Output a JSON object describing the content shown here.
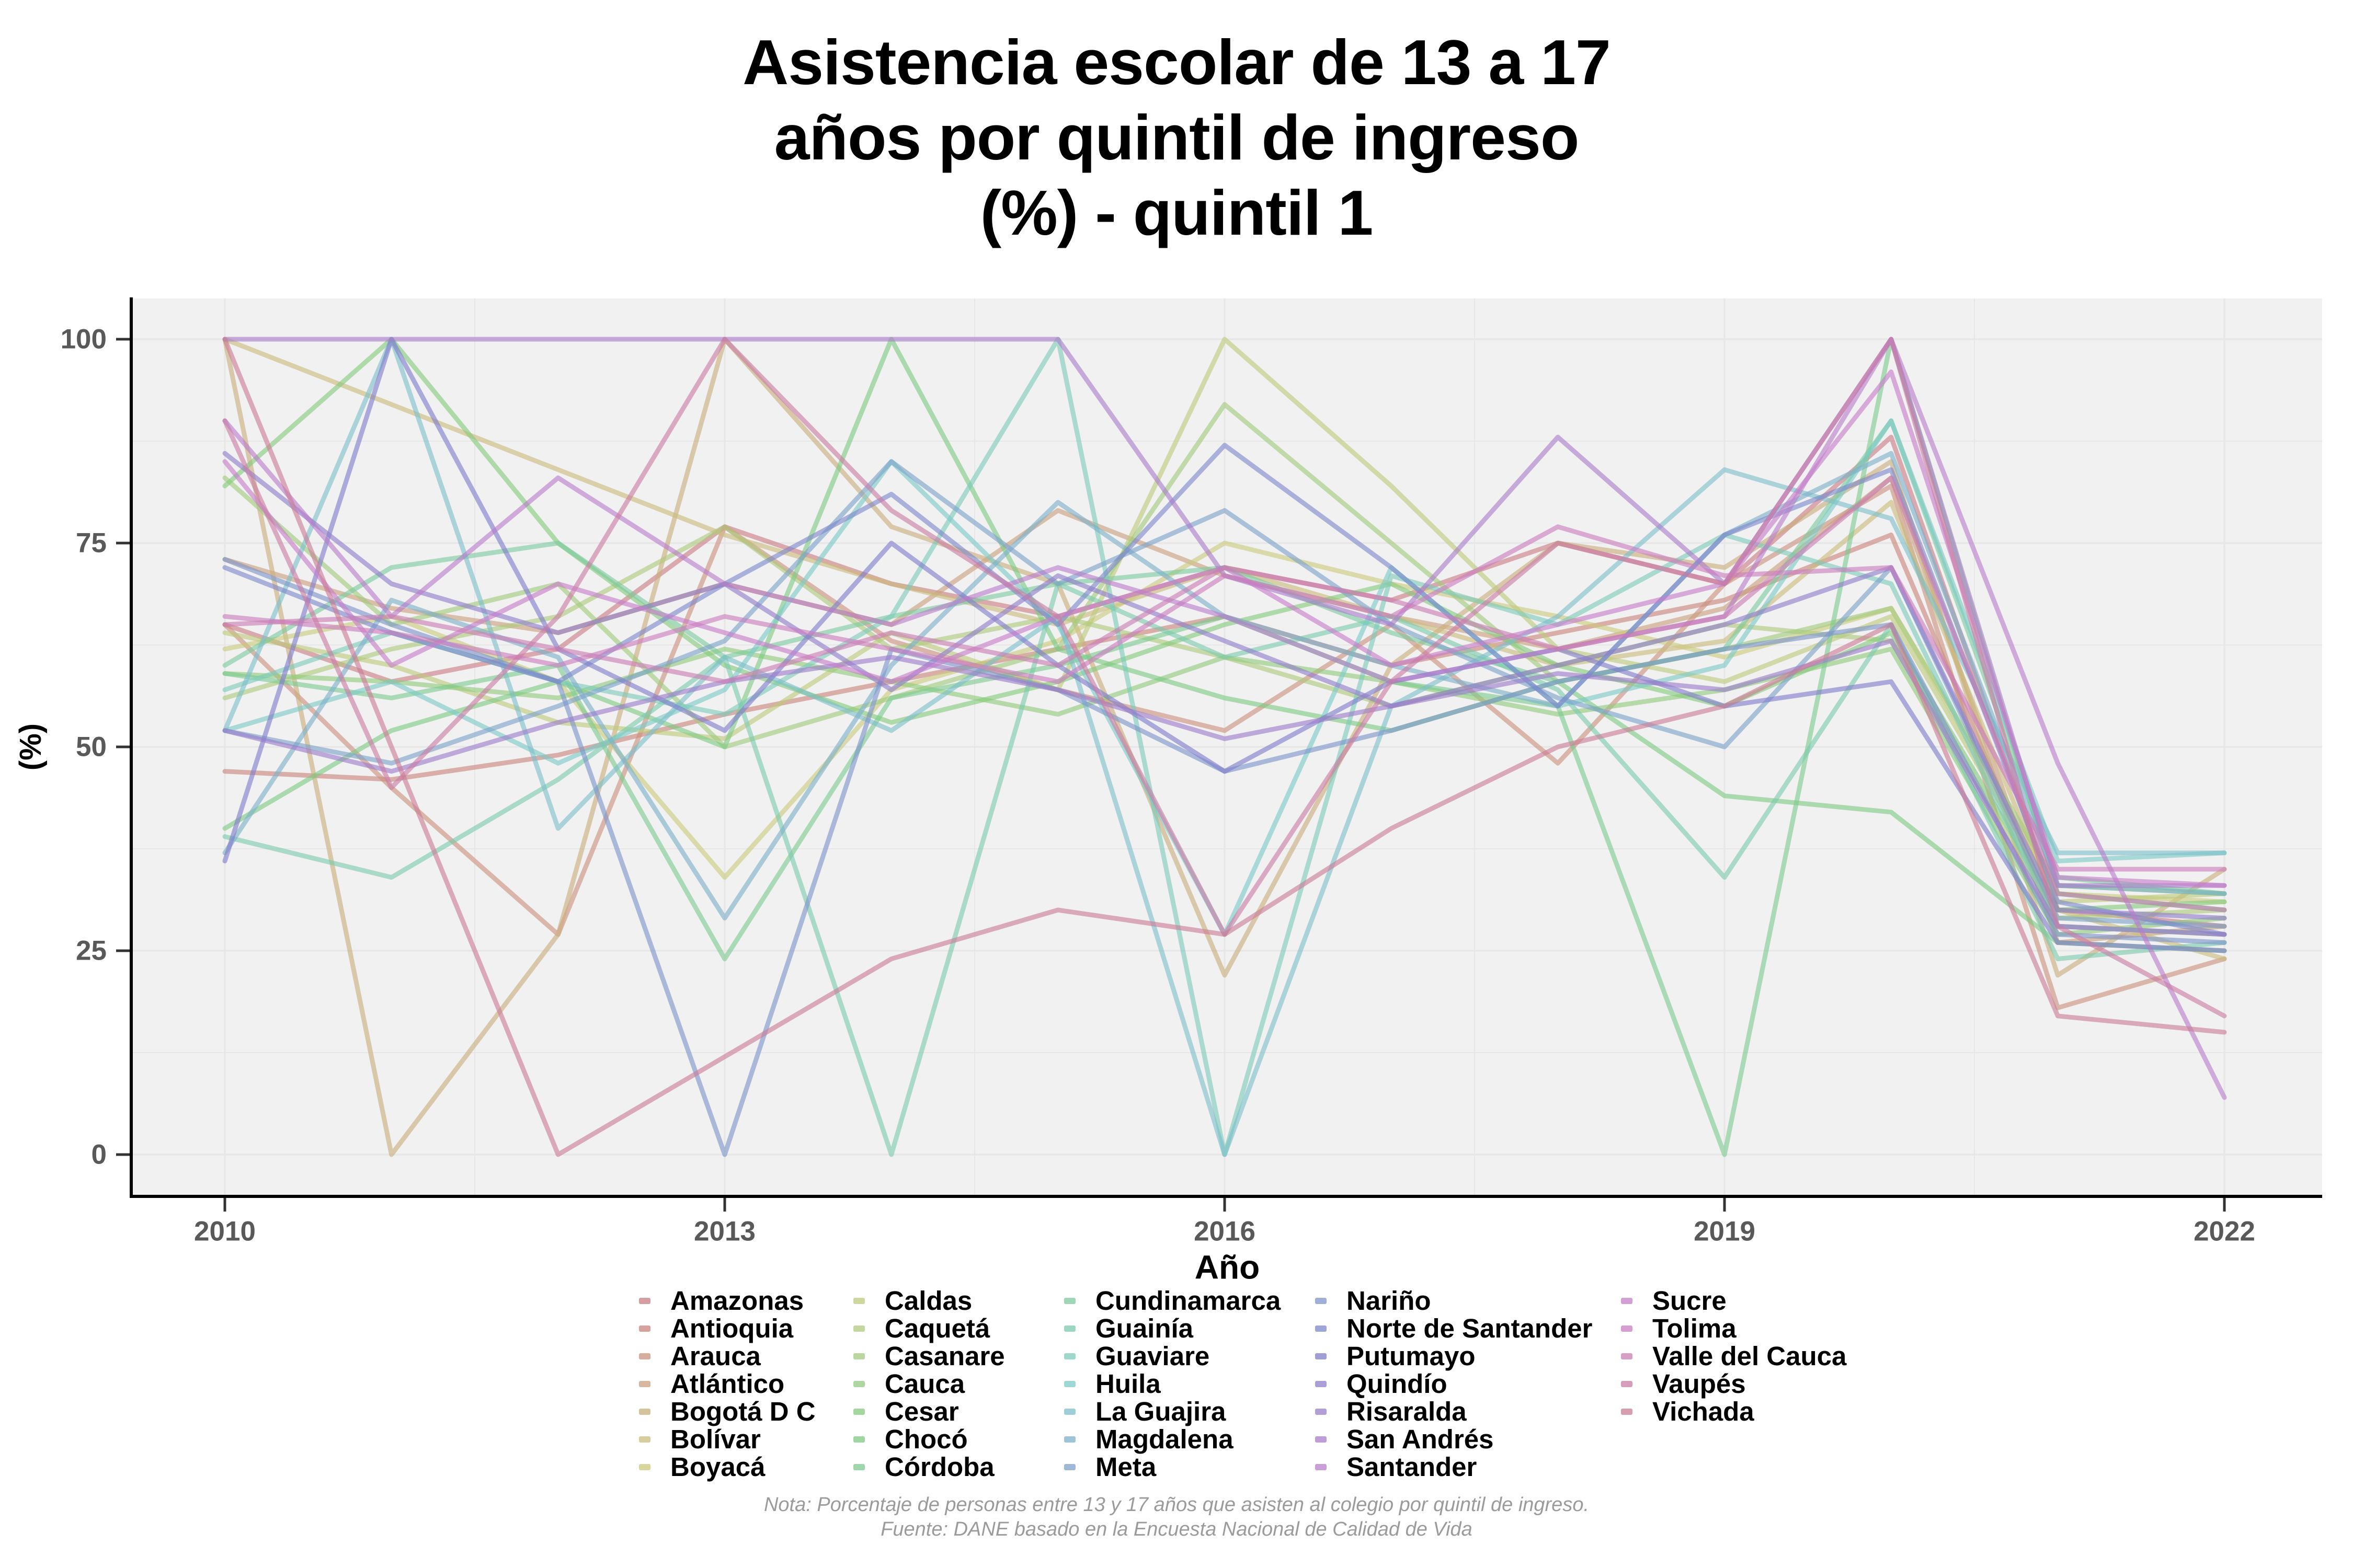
{
  "title": "Asistencia escolar de 13 a 17\naños por quintil de ingreso\n(%) - quintil 1",
  "caption": {
    "note": "Nota: Porcentaje de personas entre 13 y 17 años que asisten al colegio por quintil de ingreso.",
    "source": "Fuente: DANE basado en la Encuesta Nacional de Calidad de Vida"
  },
  "legend": {
    "columns": [
      7,
      7,
      7,
      7,
      5
    ]
  },
  "chart_data": {
    "type": "line",
    "title": "Asistencia escolar de 13 a 17 años por quintil de ingreso (%) - quintil 1",
    "xlabel": "Año",
    "ylabel": "(%)",
    "x": [
      2010,
      2011,
      2012,
      2013,
      2014,
      2015,
      2016,
      2017,
      2018,
      2019,
      2020,
      2021,
      2022
    ],
    "x_ticks": [
      "2010",
      "2013",
      "2016",
      "2019",
      "2022"
    ],
    "x_tick_values": [
      2010,
      2013,
      2016,
      2019,
      2022
    ],
    "y_ticks": [
      "0",
      "25",
      "50",
      "75",
      "100"
    ],
    "y_tick_values": [
      0,
      25,
      50,
      75,
      100
    ],
    "ylim": [
      0,
      100
    ],
    "grid": true,
    "legend_position": "bottom",
    "panel_color": "#f1f1f1",
    "grid_color": "#e7e7e7",
    "series": [
      {
        "name": "Amazonas",
        "color": "hsl(355,42%,64%)",
        "values": [
          65,
          58,
          62,
          77,
          70,
          66,
          72,
          68,
          75,
          70,
          88,
          30,
          28
        ]
      },
      {
        "name": "Antioquia",
        "color": "hsl(6,42%,64%)",
        "values": [
          47,
          46,
          49,
          54,
          58,
          62,
          66,
          60,
          64,
          68,
          76,
          28,
          27
        ]
      },
      {
        "name": "Arauca",
        "color": "hsl(17,42%,64%)",
        "values": [
          65,
          45,
          27,
          77,
          63,
          57,
          52,
          65,
          48,
          70,
          82,
          18,
          24
        ]
      },
      {
        "name": "Atlántico",
        "color": "hsl(27,42%,64%)",
        "values": [
          73,
          67,
          64,
          70,
          65,
          79,
          71,
          66,
          62,
          67,
          83,
          26,
          28
        ]
      },
      {
        "name": "Bogotá D C",
        "color": "hsl(38,42%,64%)",
        "values": [
          100,
          0,
          27,
          100,
          77,
          70,
          22,
          60,
          75,
          72,
          85,
          22,
          35
        ]
      },
      {
        "name": "Bolívar",
        "color": "hsl(49,42%,64%)",
        "values": [
          100,
          92,
          84,
          76,
          70,
          65,
          72,
          66,
          60,
          63,
          80,
          30,
          24
        ]
      },
      {
        "name": "Boyacá",
        "color": "hsl(60,42%,64%)",
        "values": [
          62,
          66,
          58,
          34,
          57,
          63,
          75,
          70,
          66,
          61,
          67,
          32,
          31
        ]
      },
      {
        "name": "Caldas",
        "color": "hsl(70,42%,64%)",
        "values": [
          64,
          60,
          53,
          51,
          64,
          57,
          100,
          82,
          62,
          58,
          66,
          31,
          32
        ]
      },
      {
        "name": "Caquetá",
        "color": "hsl(81,42%,64%)",
        "values": [
          56,
          62,
          66,
          77,
          62,
          66,
          61,
          55,
          60,
          65,
          63,
          29,
          30
        ]
      },
      {
        "name": "Casanare",
        "color": "hsl(92,42%,64%)",
        "values": [
          83,
          65,
          70,
          50,
          56,
          62,
          92,
          75,
          58,
          62,
          67,
          33,
          32
        ]
      },
      {
        "name": "Cauca",
        "color": "hsl(103,42%,64%)",
        "values": [
          59,
          58,
          56,
          62,
          58,
          54,
          61,
          58,
          54,
          57,
          62,
          27,
          29
        ]
      },
      {
        "name": "Cesar",
        "color": "hsl(114,42%,64%)",
        "values": [
          82,
          100,
          75,
          60,
          53,
          58,
          65,
          70,
          60,
          55,
          64,
          30,
          31
        ]
      },
      {
        "name": "Chocó",
        "color": "hsl(124,42%,64%)",
        "values": [
          40,
          52,
          58,
          50,
          100,
          62,
          56,
          52,
          58,
          44,
          42,
          26,
          25
        ]
      },
      {
        "name": "Córdoba",
        "color": "hsl(135,42%,64%)",
        "values": [
          59,
          56,
          60,
          24,
          56,
          60,
          66,
          58,
          55,
          0,
          100,
          32,
          30
        ]
      },
      {
        "name": "Cundinamarca",
        "color": "hsl(146,42%,64%)",
        "values": [
          60,
          72,
          75,
          61,
          66,
          70,
          72,
          64,
          58,
          62,
          90,
          34,
          32
        ]
      },
      {
        "name": "Guainía",
        "color": "hsl(157,42%,64%)",
        "values": [
          39,
          34,
          46,
          61,
          0,
          70,
          61,
          66,
          57,
          34,
          65,
          24,
          26
        ]
      },
      {
        "name": "Guaviare",
        "color": "hsl(167,42%,64%)",
        "values": [
          57,
          64,
          58,
          54,
          66,
          100,
          0,
          71,
          65,
          76,
          70,
          28,
          27
        ]
      },
      {
        "name": "Huila",
        "color": "hsl(178,42%,64%)",
        "values": [
          52,
          58,
          48,
          57,
          85,
          65,
          27,
          72,
          55,
          60,
          90,
          36,
          37
        ]
      },
      {
        "name": "La Guajira",
        "color": "hsl(189,42%,64%)",
        "values": [
          52,
          100,
          40,
          61,
          52,
          66,
          0,
          55,
          66,
          84,
          78,
          37,
          37
        ]
      },
      {
        "name": "Magdalena",
        "color": "hsl(200,42%,64%)",
        "values": [
          37,
          68,
          61,
          29,
          60,
          80,
          66,
          60,
          55,
          76,
          86,
          33,
          32
        ]
      },
      {
        "name": "Meta",
        "color": "hsl(211,42%,64%)",
        "values": [
          52,
          48,
          55,
          63,
          85,
          70,
          79,
          65,
          56,
          50,
          72,
          29,
          28
        ]
      },
      {
        "name": "Nariño",
        "color": "hsl(221,42%,64%)",
        "values": [
          73,
          65,
          58,
          0,
          62,
          57,
          47,
          52,
          58,
          62,
          65,
          27,
          26
        ]
      },
      {
        "name": "Norte de Santander",
        "color": "hsl(232,42%,64%)",
        "values": [
          72,
          64,
          58,
          70,
          81,
          65,
          87,
          72,
          55,
          76,
          84,
          31,
          27
        ]
      },
      {
        "name": "Putumayo",
        "color": "hsl(243,42%,64%)",
        "values": [
          36,
          100,
          62,
          52,
          75,
          60,
          47,
          58,
          62,
          55,
          58,
          26,
          25
        ]
      },
      {
        "name": "Quindío",
        "color": "hsl(254,42%,64%)",
        "values": [
          86,
          70,
          64,
          70,
          57,
          71,
          63,
          55,
          60,
          65,
          72,
          30,
          29
        ]
      },
      {
        "name": "Risaralda",
        "color": "hsl(264,42%,64%)",
        "values": [
          52,
          47,
          53,
          58,
          61,
          57,
          51,
          55,
          59,
          57,
          63,
          28,
          27
        ]
      },
      {
        "name": "San Andrés",
        "color": "hsl(275,42%,64%)",
        "values": [
          100,
          100,
          100,
          100,
          100,
          100,
          71,
          65,
          88,
          70,
          100,
          33,
          33
        ]
      },
      {
        "name": "Santander",
        "color": "hsl(286,42%,64%)",
        "values": [
          90,
          66,
          83,
          70,
          65,
          72,
          66,
          58,
          62,
          66,
          100,
          48,
          7
        ]
      },
      {
        "name": "Sucre",
        "color": "hsl(297,42%,64%)",
        "values": [
          85,
          60,
          70,
          64,
          58,
          66,
          72,
          60,
          65,
          70,
          96,
          34,
          33
        ]
      },
      {
        "name": "Tolima",
        "color": "hsl(308,42%,64%)",
        "values": [
          66,
          64,
          60,
          66,
          62,
          58,
          71,
          66,
          77,
          71,
          72,
          35,
          35
        ]
      },
      {
        "name": "Valle del Cauca",
        "color": "hsl(318,42%,64%)",
        "values": [
          65,
          66,
          62,
          58,
          64,
          60,
          72,
          68,
          62,
          66,
          83,
          32,
          30
        ]
      },
      {
        "name": "Vaupés",
        "color": "hsl(329,42%,64%)",
        "values": [
          90,
          45,
          66,
          100,
          79,
          66,
          27,
          58,
          75,
          70,
          100,
          28,
          17
        ]
      },
      {
        "name": "Vichada",
        "color": "hsl(340,42%,64%)",
        "values": [
          100,
          50,
          0,
          12,
          24,
          30,
          27,
          40,
          50,
          55,
          65,
          17,
          15
        ]
      }
    ]
  }
}
